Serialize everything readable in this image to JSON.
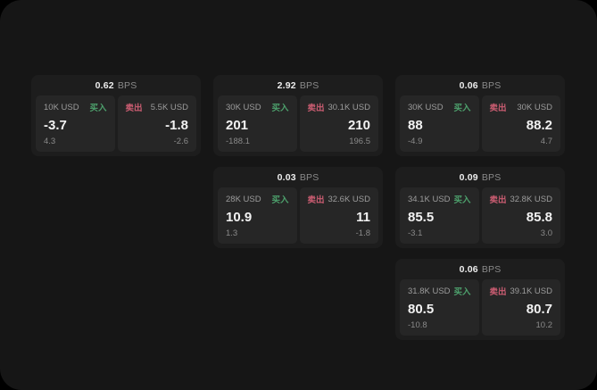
{
  "labels": {
    "bps": "BPS",
    "buy": "买入",
    "sell": "卖出"
  },
  "colors": {
    "buy_green": "#4da06c",
    "sell_red": "#cb5d72",
    "window_background": "#161616",
    "card_background": "#1d1d1d",
    "panel_background": "#262626",
    "price_text": "#f2f2f2",
    "muted_text": "#8a8a8a"
  },
  "cards": [
    {
      "bps_value": "0.62",
      "buy": {
        "amount": "10K USD",
        "price": "-3.7",
        "delta": "4.3"
      },
      "sell": {
        "amount": "5.5K USD",
        "price": "-1.8",
        "delta": "-2.6"
      }
    },
    {
      "bps_value": "2.92",
      "buy": {
        "amount": "30K USD",
        "price": "201",
        "delta": "-188.1"
      },
      "sell": {
        "amount": "30.1K USD",
        "price": "210",
        "delta": "196.5"
      }
    },
    {
      "bps_value": "0.06",
      "buy": {
        "amount": "30K USD",
        "price": "88",
        "delta": "-4.9"
      },
      "sell": {
        "amount": "30K USD",
        "price": "88.2",
        "delta": "4.7"
      }
    },
    {
      "bps_value": "0.03",
      "buy": {
        "amount": "28K USD",
        "price": "10.9",
        "delta": "1.3"
      },
      "sell": {
        "amount": "32.6K USD",
        "price": "11",
        "delta": "-1.8"
      }
    },
    {
      "bps_value": "0.09",
      "buy": {
        "amount": "34.1K USD",
        "price": "85.5",
        "delta": "-3.1"
      },
      "sell": {
        "amount": "32.8K USD",
        "price": "85.8",
        "delta": "3.0"
      }
    },
    {
      "bps_value": "0.06",
      "buy": {
        "amount": "31.8K USD",
        "price": "80.5",
        "delta": "-10.8"
      },
      "sell": {
        "amount": "39.1K USD",
        "price": "80.7",
        "delta": "10.2"
      }
    }
  ]
}
